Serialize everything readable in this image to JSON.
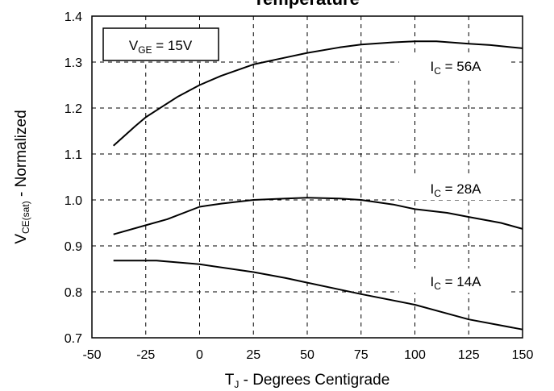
{
  "chart_data": {
    "type": "line",
    "title": "Temperature",
    "xlabel": {
      "main": "T",
      "sub": "J",
      "rest": " - Degrees Centigrade"
    },
    "ylabel": {
      "main": "V",
      "sub": "CE(sat)",
      "rest": " - Normalized"
    },
    "xlim": [
      -50,
      150
    ],
    "ylim": [
      0.7,
      1.4
    ],
    "x_ticks": [
      -50,
      -25,
      0,
      25,
      50,
      75,
      100,
      125,
      150
    ],
    "x_tick_labels": [
      "-50",
      "-25",
      "0",
      "25",
      "50",
      "75",
      "100",
      "125",
      "150"
    ],
    "y_ticks": [
      0.7,
      0.8,
      0.9,
      1.0,
      1.1,
      1.2,
      1.3,
      1.4
    ],
    "y_tick_labels": [
      "0.7",
      "0.8",
      "0.9",
      "1.0",
      "1.1",
      "1.2",
      "1.3",
      "1.4"
    ],
    "grid": true,
    "legend_box": {
      "main": "V",
      "sub": "GE",
      "rest": " = 15V"
    },
    "series": [
      {
        "name": "56A",
        "label": {
          "main": "I",
          "sub": "C",
          "rest": " = 56A"
        },
        "x": [
          -40,
          -30,
          -25,
          -20,
          -10,
          0,
          10,
          25,
          40,
          50,
          65,
          75,
          90,
          100,
          110,
          125,
          135,
          150
        ],
        "y": [
          1.118,
          1.16,
          1.18,
          1.195,
          1.225,
          1.25,
          1.27,
          1.295,
          1.31,
          1.32,
          1.332,
          1.338,
          1.343,
          1.345,
          1.345,
          1.34,
          1.337,
          1.33
        ]
      },
      {
        "name": "28A",
        "label": {
          "main": "I",
          "sub": "C",
          "rest": " = 28A"
        },
        "x": [
          -40,
          -25,
          -15,
          0,
          10,
          25,
          40,
          50,
          65,
          75,
          90,
          100,
          115,
          125,
          140,
          150
        ],
        "y": [
          0.925,
          0.945,
          0.958,
          0.985,
          0.992,
          1.0,
          1.003,
          1.005,
          1.003,
          1.0,
          0.99,
          0.98,
          0.972,
          0.963,
          0.95,
          0.937
        ]
      },
      {
        "name": "14A",
        "label": {
          "main": "I",
          "sub": "C",
          "rest": " = 14A"
        },
        "x": [
          -40,
          -20,
          0,
          25,
          40,
          50,
          75,
          100,
          125,
          150
        ],
        "y": [
          0.868,
          0.868,
          0.86,
          0.843,
          0.83,
          0.82,
          0.795,
          0.772,
          0.74,
          0.718
        ]
      }
    ],
    "colors": {
      "line": "#000000",
      "grid": "#000000",
      "background": "#ffffff"
    }
  }
}
